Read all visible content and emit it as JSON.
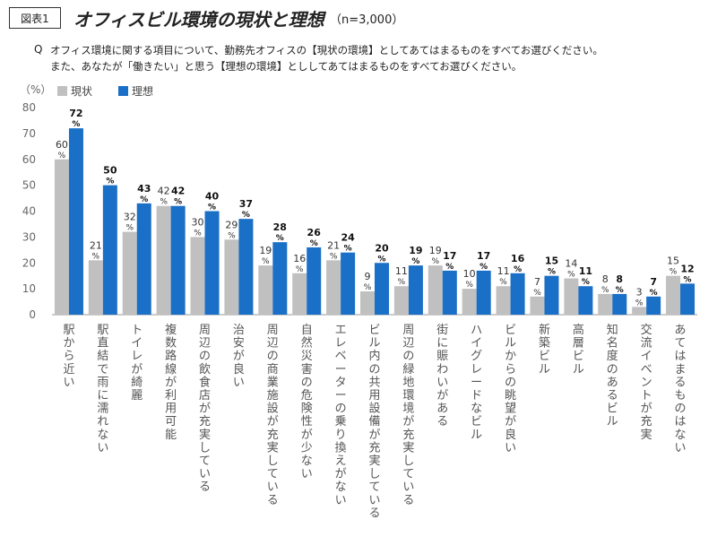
{
  "header": {
    "figure_label": "図表1",
    "title": "オフィスビル環境の現状と理想",
    "sample_note": "（n=3,000）"
  },
  "question": {
    "mark": "Q",
    "line1": "オフィス環境に関する項目について、勤務先オフィスの【現状の環境】としてあてはまるものをすべてお選びください。",
    "line2": "また、あなたが「働きたい」と思う【理想の環境】とししてあてはまるものをすべてお選びください。"
  },
  "colors": {
    "current": "#c0c0c0",
    "ideal": "#1a6fc6",
    "axis": "#999999"
  },
  "chart_data": {
    "type": "bar",
    "ylabel": "（%）",
    "ylim": [
      0,
      80
    ],
    "yticks": [
      0,
      10,
      20,
      30,
      40,
      50,
      60,
      70,
      80
    ],
    "grid": false,
    "legend_position": "top-left",
    "unit_label": "%",
    "categories": [
      "駅から近い",
      "駅直結で雨に濡れない",
      "トイレが綺麗",
      "複数路線が利用可能",
      "周辺の飲食店が充実している",
      "治安が良い",
      "周辺の商業施設が充実している",
      "自然災害の危険性が少ない",
      "エレベーターの乗り換えがない",
      "ビル内の共用設備が充実している",
      "周辺の緑地環境が充実している",
      "街に賑わいがある",
      "ハイグレードなビル",
      "ビルからの眺望が良い",
      "新築ビル",
      "高層ビル",
      "知名度のあるビル",
      "交流イベントが充実",
      "あてはまるものはない"
    ],
    "series": [
      {
        "name": "現状",
        "values": [
          60,
          21,
          32,
          42,
          30,
          29,
          19,
          16,
          21,
          9,
          11,
          19,
          10,
          11,
          7,
          14,
          8,
          3,
          15
        ]
      },
      {
        "name": "理想",
        "values": [
          72,
          50,
          43,
          42,
          40,
          37,
          28,
          26,
          24,
          20,
          19,
          17,
          17,
          16,
          15,
          11,
          8,
          7,
          12
        ]
      }
    ]
  }
}
